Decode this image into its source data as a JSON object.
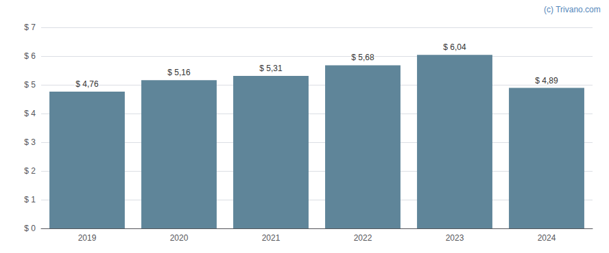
{
  "chart_data": {
    "type": "bar",
    "categories": [
      "2019",
      "2020",
      "2021",
      "2022",
      "2023",
      "2024"
    ],
    "values": [
      4.76,
      5.16,
      5.31,
      5.68,
      6.04,
      4.89
    ],
    "value_labels": [
      "$ 4,76",
      "$ 5,16",
      "$ 5,31",
      "$ 5,68",
      "$ 6,04",
      "$ 4,89"
    ],
    "data_labels": true,
    "color": "#5f8599",
    "ylim": [
      0,
      7
    ],
    "yticks": [
      {
        "value": 0,
        "label": "$ 0"
      },
      {
        "value": 1,
        "label": "$ 1"
      },
      {
        "value": 2,
        "label": "$ 2"
      },
      {
        "value": 3,
        "label": "$ 3"
      },
      {
        "value": 4,
        "label": "$ 4"
      },
      {
        "value": 5,
        "label": "$ 5"
      },
      {
        "value": 6,
        "label": "$ 6"
      },
      {
        "value": 7,
        "label": "$ 7"
      }
    ],
    "grid": true,
    "annotations": [
      "(c) Trivano.com"
    ]
  }
}
